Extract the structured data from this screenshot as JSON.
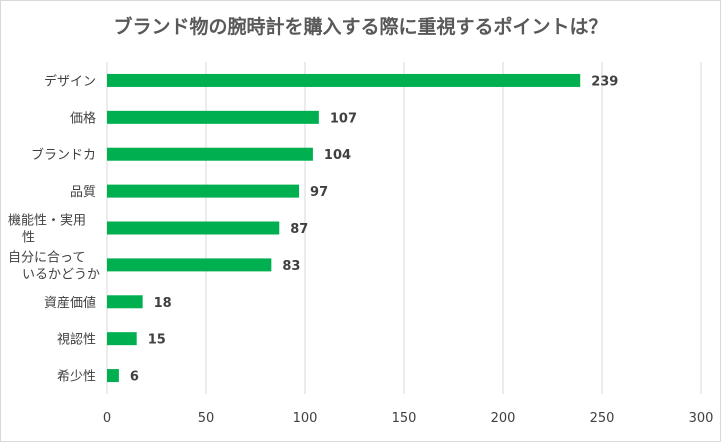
{
  "chart_data": {
    "type": "bar",
    "orientation": "horizontal",
    "title": "ブランド物の腕時計を購入する際に重視するポイントは？",
    "categories": [
      [
        "デザイン"
      ],
      [
        "価格"
      ],
      [
        "ブランドカ"
      ],
      [
        "品質"
      ],
      [
        "機能性・実用",
        "性"
      ],
      [
        "自分に合って",
        "いるかどうか"
      ],
      [
        "資産価値"
      ],
      [
        "視認性"
      ],
      [
        "希少性"
      ]
    ],
    "values": [
      239,
      107,
      104,
      97,
      87,
      83,
      18,
      15,
      6
    ],
    "value_labels": [
      "239",
      "107",
      "104",
      "97",
      "87",
      "83",
      "18",
      "15",
      "6"
    ],
    "xlim": [
      0,
      300
    ],
    "xticks": [
      0,
      50,
      100,
      150,
      200,
      250,
      300
    ],
    "xtick_labels": [
      "0",
      "50",
      "100",
      "150",
      "200",
      "250",
      "300"
    ],
    "grid": true,
    "bar_color": "#00b050"
  }
}
